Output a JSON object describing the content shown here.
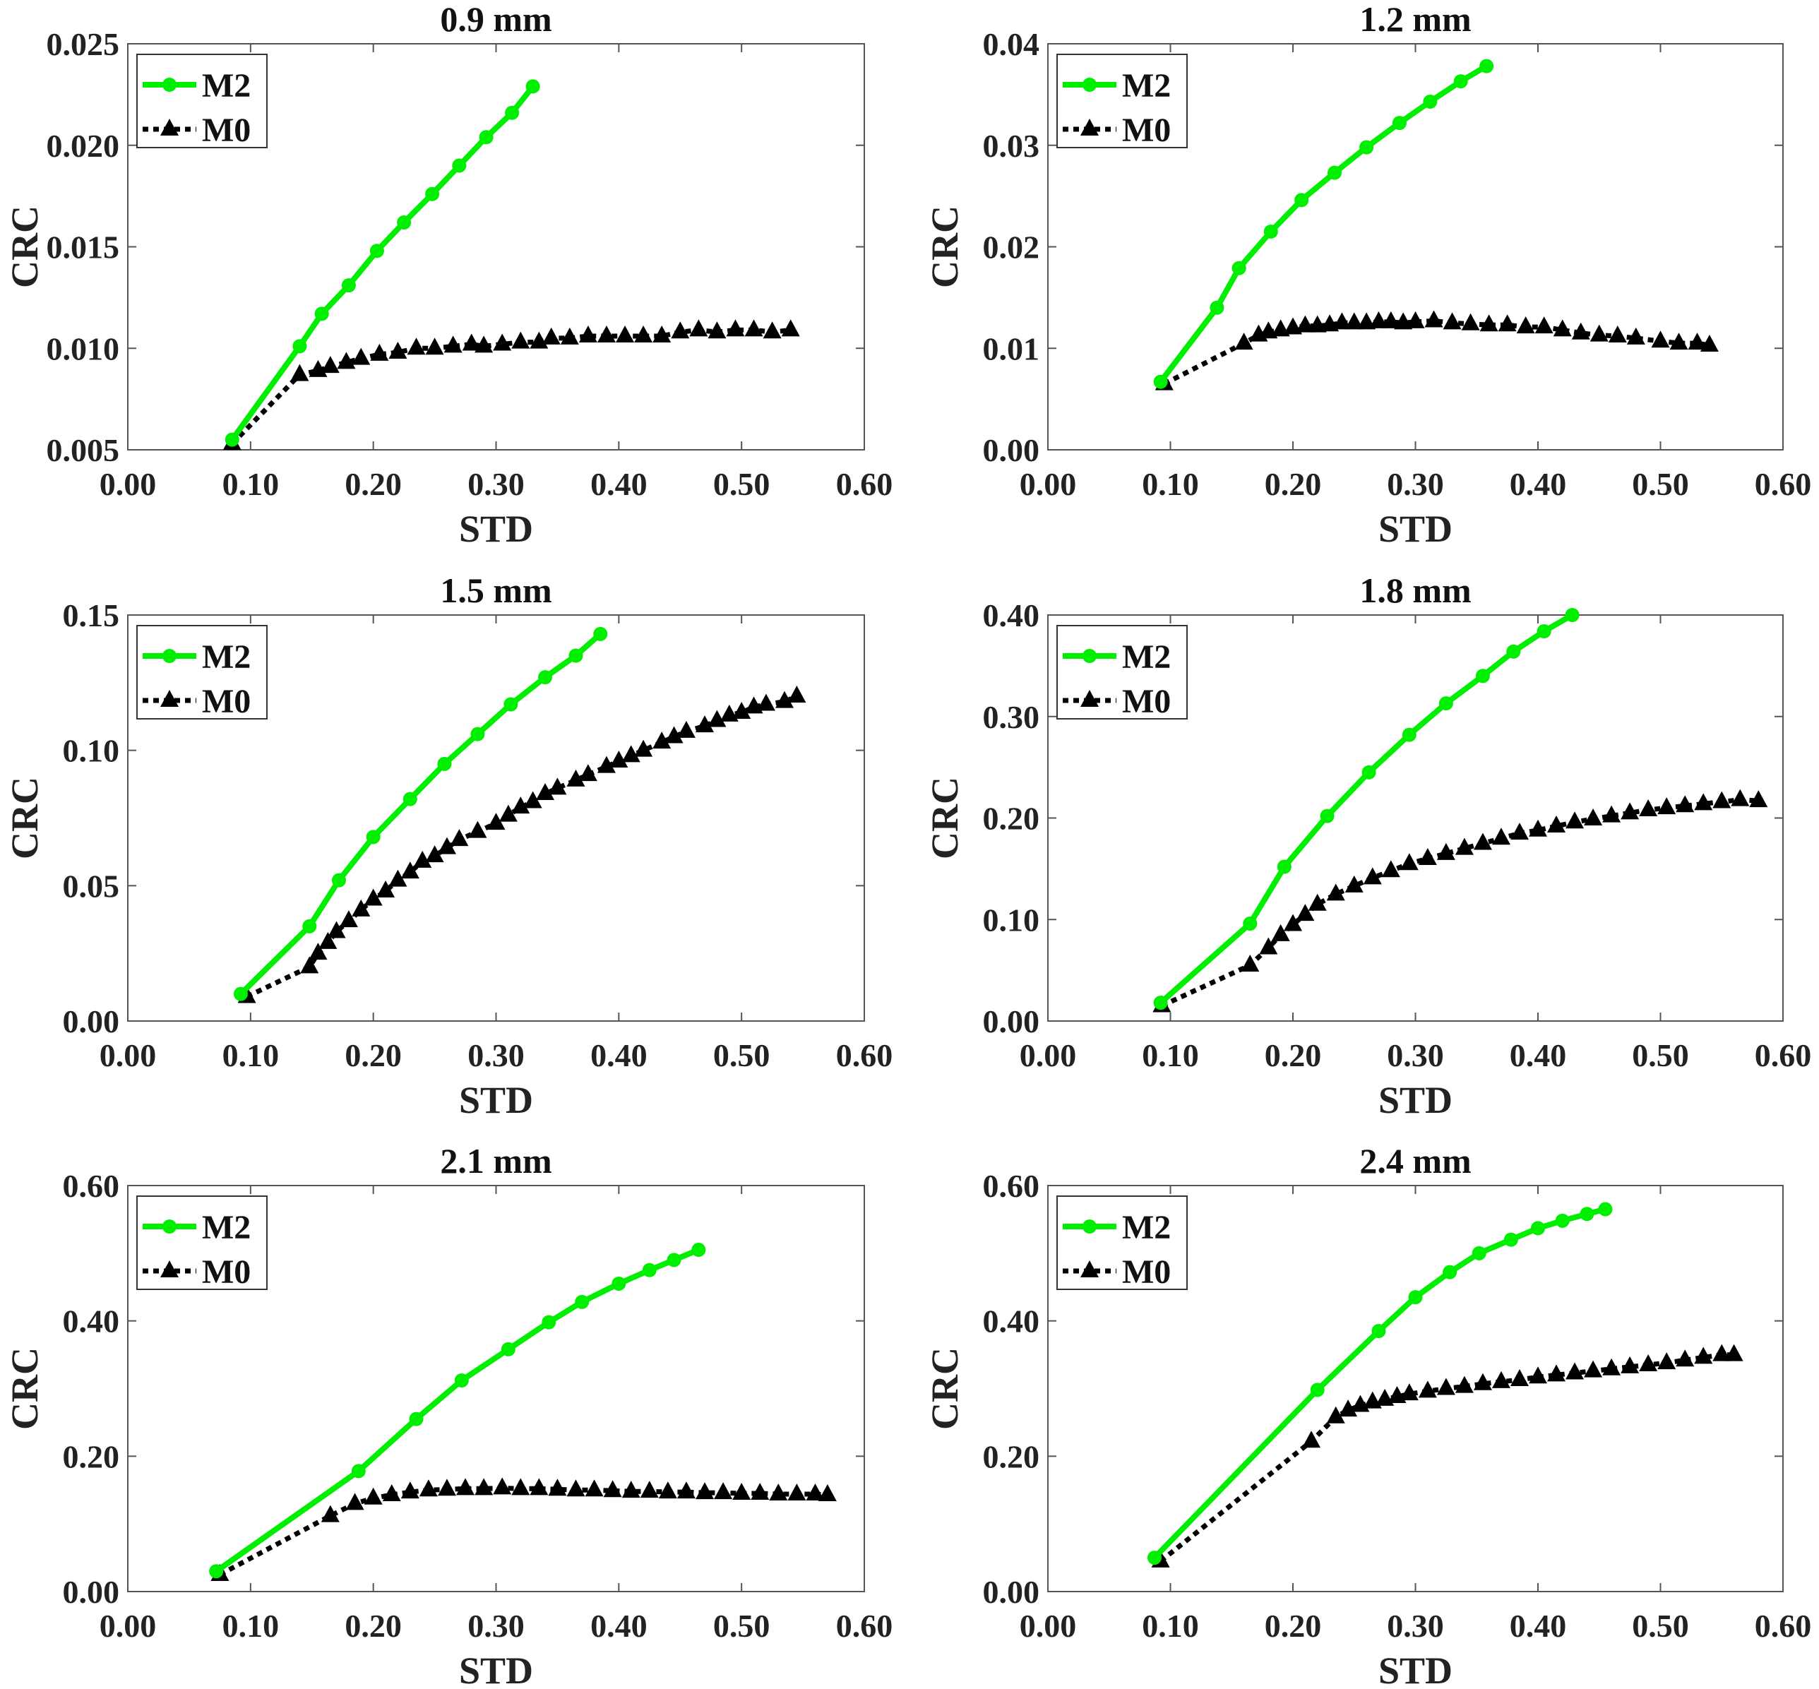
{
  "colors": {
    "M2": "#00ee00",
    "M0": "#000000",
    "axis": "#555555"
  },
  "chart_data": [
    {
      "type": "line",
      "title": "0.9 mm",
      "xlabel": "STD",
      "ylabel": "CRC",
      "xlim": [
        0,
        0.6
      ],
      "ylim": [
        0.005,
        0.025
      ],
      "xticks": [
        "0.00",
        "0.10",
        "0.20",
        "0.30",
        "0.40",
        "0.50",
        "0.60"
      ],
      "yticks": [
        "0.005",
        "0.010",
        "0.015",
        "0.020",
        "0.025"
      ],
      "legend": "top-left",
      "grid": false,
      "series": [
        {
          "name": "M2",
          "marker": "circle",
          "line": "solid",
          "x": [
            0.085,
            0.14,
            0.158,
            0.18,
            0.203,
            0.225,
            0.248,
            0.27,
            0.292,
            0.313,
            0.33
          ],
          "y": [
            0.0055,
            0.0101,
            0.0117,
            0.0131,
            0.0148,
            0.0162,
            0.0176,
            0.019,
            0.0204,
            0.0216,
            0.0229
          ]
        },
        {
          "name": "M0",
          "marker": "triangle",
          "line": "dotted",
          "x": [
            0.085,
            0.14,
            0.155,
            0.165,
            0.178,
            0.19,
            0.205,
            0.22,
            0.235,
            0.25,
            0.265,
            0.28,
            0.29,
            0.305,
            0.32,
            0.335,
            0.345,
            0.36,
            0.375,
            0.39,
            0.405,
            0.42,
            0.435,
            0.45,
            0.465,
            0.48,
            0.495,
            0.51,
            0.525,
            0.54
          ],
          "y": [
            0.0053,
            0.0087,
            0.0089,
            0.0091,
            0.0093,
            0.0095,
            0.0097,
            0.0098,
            0.01,
            0.01,
            0.0101,
            0.0102,
            0.0101,
            0.0102,
            0.0103,
            0.0103,
            0.0105,
            0.0105,
            0.0106,
            0.0106,
            0.0106,
            0.0106,
            0.0106,
            0.0108,
            0.0109,
            0.0108,
            0.0109,
            0.0109,
            0.0108,
            0.0109
          ]
        }
      ]
    },
    {
      "type": "line",
      "title": "1.2 mm",
      "xlabel": "STD",
      "ylabel": "CRC",
      "xlim": [
        0,
        0.6
      ],
      "ylim": [
        0,
        0.04
      ],
      "xticks": [
        "0.00",
        "0.10",
        "0.20",
        "0.30",
        "0.40",
        "0.50",
        "0.60"
      ],
      "yticks": [
        "0.00",
        "0.01",
        "0.02",
        "0.03",
        "0.04"
      ],
      "legend": "top-left",
      "grid": false,
      "series": [
        {
          "name": "M2",
          "marker": "circle",
          "line": "solid",
          "x": [
            0.092,
            0.138,
            0.156,
            0.182,
            0.207,
            0.234,
            0.26,
            0.287,
            0.312,
            0.337,
            0.358
          ],
          "y": [
            0.0067,
            0.014,
            0.0179,
            0.0215,
            0.0246,
            0.0273,
            0.0298,
            0.0322,
            0.0343,
            0.0363,
            0.0378
          ]
        },
        {
          "name": "M0",
          "marker": "triangle",
          "line": "dotted",
          "x": [
            0.095,
            0.16,
            0.172,
            0.18,
            0.19,
            0.2,
            0.21,
            0.22,
            0.23,
            0.24,
            0.25,
            0.26,
            0.27,
            0.28,
            0.29,
            0.3,
            0.315,
            0.33,
            0.345,
            0.36,
            0.375,
            0.39,
            0.405,
            0.42,
            0.435,
            0.45,
            0.465,
            0.48,
            0.5,
            0.515,
            0.53,
            0.54
          ],
          "y": [
            0.0065,
            0.0105,
            0.0113,
            0.0116,
            0.0118,
            0.012,
            0.0122,
            0.0122,
            0.0123,
            0.0125,
            0.0125,
            0.0125,
            0.0126,
            0.0126,
            0.0125,
            0.0126,
            0.0127,
            0.0125,
            0.0124,
            0.0123,
            0.0123,
            0.0121,
            0.0121,
            0.0118,
            0.0115,
            0.0113,
            0.0112,
            0.011,
            0.0107,
            0.0105,
            0.0105,
            0.0103
          ]
        }
      ]
    },
    {
      "type": "line",
      "title": "1.5 mm",
      "xlabel": "STD",
      "ylabel": "CRC",
      "xlim": [
        0,
        0.6
      ],
      "ylim": [
        0,
        0.15
      ],
      "xticks": [
        "0.00",
        "0.10",
        "0.20",
        "0.30",
        "0.40",
        "0.50",
        "0.60"
      ],
      "yticks": [
        "0.00",
        "0.05",
        "0.10",
        "0.15"
      ],
      "legend": "top-left",
      "grid": false,
      "series": [
        {
          "name": "M2",
          "marker": "circle",
          "line": "solid",
          "x": [
            0.092,
            0.148,
            0.172,
            0.2,
            0.23,
            0.258,
            0.285,
            0.312,
            0.34,
            0.365,
            0.385
          ],
          "y": [
            0.01,
            0.035,
            0.052,
            0.068,
            0.082,
            0.095,
            0.106,
            0.117,
            0.127,
            0.135,
            0.143
          ]
        },
        {
          "name": "M0",
          "marker": "triangle",
          "line": "dotted",
          "x": [
            0.097,
            0.148,
            0.155,
            0.163,
            0.17,
            0.18,
            0.19,
            0.2,
            0.21,
            0.22,
            0.23,
            0.24,
            0.25,
            0.26,
            0.27,
            0.285,
            0.3,
            0.31,
            0.32,
            0.33,
            0.34,
            0.35,
            0.365,
            0.375,
            0.39,
            0.4,
            0.41,
            0.42,
            0.435,
            0.445,
            0.455,
            0.47,
            0.48,
            0.49,
            0.5,
            0.51,
            0.52,
            0.535,
            0.545
          ],
          "y": [
            0.009,
            0.02,
            0.025,
            0.029,
            0.033,
            0.037,
            0.041,
            0.045,
            0.048,
            0.052,
            0.055,
            0.059,
            0.061,
            0.064,
            0.067,
            0.07,
            0.073,
            0.076,
            0.079,
            0.081,
            0.084,
            0.086,
            0.089,
            0.091,
            0.094,
            0.096,
            0.098,
            0.1,
            0.103,
            0.105,
            0.107,
            0.109,
            0.111,
            0.113,
            0.114,
            0.116,
            0.117,
            0.118,
            0.12
          ]
        }
      ]
    },
    {
      "type": "line",
      "title": "1.8 mm",
      "xlabel": "STD",
      "ylabel": "CRC",
      "xlim": [
        0,
        0.6
      ],
      "ylim": [
        0,
        0.4
      ],
      "xticks": [
        "0.00",
        "0.10",
        "0.20",
        "0.30",
        "0.40",
        "0.50",
        "0.60"
      ],
      "yticks": [
        "0.00",
        "0.10",
        "0.20",
        "0.30",
        "0.40"
      ],
      "legend": "top-left",
      "grid": false,
      "series": [
        {
          "name": "M2",
          "marker": "circle",
          "line": "solid",
          "x": [
            0.092,
            0.165,
            0.193,
            0.228,
            0.262,
            0.295,
            0.325,
            0.355,
            0.38,
            0.405,
            0.428
          ],
          "y": [
            0.018,
            0.096,
            0.152,
            0.202,
            0.245,
            0.282,
            0.313,
            0.34,
            0.364,
            0.384,
            0.4
          ]
        },
        {
          "name": "M0",
          "marker": "triangle",
          "line": "dotted",
          "x": [
            0.093,
            0.165,
            0.18,
            0.19,
            0.2,
            0.21,
            0.22,
            0.235,
            0.25,
            0.265,
            0.28,
            0.295,
            0.31,
            0.325,
            0.34,
            0.355,
            0.37,
            0.385,
            0.4,
            0.415,
            0.43,
            0.445,
            0.46,
            0.475,
            0.49,
            0.505,
            0.52,
            0.535,
            0.55,
            0.565,
            0.58
          ],
          "y": [
            0.015,
            0.055,
            0.072,
            0.085,
            0.095,
            0.105,
            0.115,
            0.125,
            0.133,
            0.141,
            0.148,
            0.155,
            0.16,
            0.165,
            0.17,
            0.175,
            0.18,
            0.185,
            0.188,
            0.192,
            0.196,
            0.199,
            0.202,
            0.205,
            0.208,
            0.21,
            0.212,
            0.214,
            0.216,
            0.218,
            0.217
          ]
        }
      ]
    },
    {
      "type": "line",
      "title": "2.1 mm",
      "xlabel": "STD",
      "ylabel": "CRC",
      "xlim": [
        0,
        0.6
      ],
      "ylim": [
        0,
        0.6
      ],
      "xticks": [
        "0.00",
        "0.10",
        "0.20",
        "0.30",
        "0.40",
        "0.50",
        "0.60"
      ],
      "yticks": [
        "0.00",
        "0.20",
        "0.40",
        "0.60"
      ],
      "legend": "top-left",
      "grid": false,
      "series": [
        {
          "name": "M2",
          "marker": "circle",
          "line": "solid",
          "x": [
            0.072,
            0.188,
            0.235,
            0.272,
            0.31,
            0.343,
            0.37,
            0.4,
            0.425,
            0.445,
            0.465
          ],
          "y": [
            0.03,
            0.178,
            0.255,
            0.312,
            0.358,
            0.398,
            0.428,
            0.455,
            0.475,
            0.49,
            0.505
          ]
        },
        {
          "name": "M0",
          "marker": "triangle",
          "line": "dotted",
          "x": [
            0.075,
            0.165,
            0.185,
            0.2,
            0.215,
            0.23,
            0.245,
            0.26,
            0.275,
            0.29,
            0.305,
            0.32,
            0.335,
            0.35,
            0.365,
            0.38,
            0.395,
            0.41,
            0.425,
            0.44,
            0.455,
            0.47,
            0.485,
            0.5,
            0.515,
            0.53,
            0.545,
            0.56,
            0.57
          ],
          "y": [
            0.025,
            0.112,
            0.13,
            0.138,
            0.143,
            0.147,
            0.15,
            0.151,
            0.152,
            0.152,
            0.153,
            0.152,
            0.152,
            0.151,
            0.15,
            0.15,
            0.149,
            0.148,
            0.148,
            0.147,
            0.147,
            0.146,
            0.146,
            0.145,
            0.145,
            0.144,
            0.144,
            0.144,
            0.143
          ]
        }
      ]
    },
    {
      "type": "line",
      "title": "2.4 mm",
      "xlabel": "STD",
      "ylabel": "CRC",
      "xlim": [
        0,
        0.6
      ],
      "ylim": [
        0,
        0.6
      ],
      "xticks": [
        "0.00",
        "0.10",
        "0.20",
        "0.30",
        "0.40",
        "0.50",
        "0.60"
      ],
      "yticks": [
        "0.00",
        "0.20",
        "0.40",
        "0.60"
      ],
      "legend": "top-left",
      "grid": false,
      "series": [
        {
          "name": "M2",
          "marker": "circle",
          "line": "solid",
          "x": [
            0.087,
            0.22,
            0.27,
            0.3,
            0.328,
            0.352,
            0.378,
            0.4,
            0.42,
            0.44,
            0.455
          ],
          "y": [
            0.05,
            0.298,
            0.385,
            0.435,
            0.472,
            0.5,
            0.52,
            0.537,
            0.548,
            0.558,
            0.565
          ]
        },
        {
          "name": "M0",
          "marker": "triangle",
          "line": "dotted",
          "x": [
            0.092,
            0.215,
            0.235,
            0.245,
            0.255,
            0.265,
            0.275,
            0.285,
            0.295,
            0.31,
            0.325,
            0.34,
            0.355,
            0.37,
            0.385,
            0.4,
            0.415,
            0.43,
            0.445,
            0.46,
            0.475,
            0.49,
            0.505,
            0.52,
            0.535,
            0.55,
            0.56
          ],
          "y": [
            0.045,
            0.222,
            0.258,
            0.268,
            0.275,
            0.28,
            0.284,
            0.288,
            0.292,
            0.296,
            0.3,
            0.303,
            0.307,
            0.31,
            0.313,
            0.317,
            0.32,
            0.323,
            0.326,
            0.329,
            0.332,
            0.335,
            0.338,
            0.342,
            0.346,
            0.35,
            0.35
          ]
        }
      ]
    }
  ]
}
